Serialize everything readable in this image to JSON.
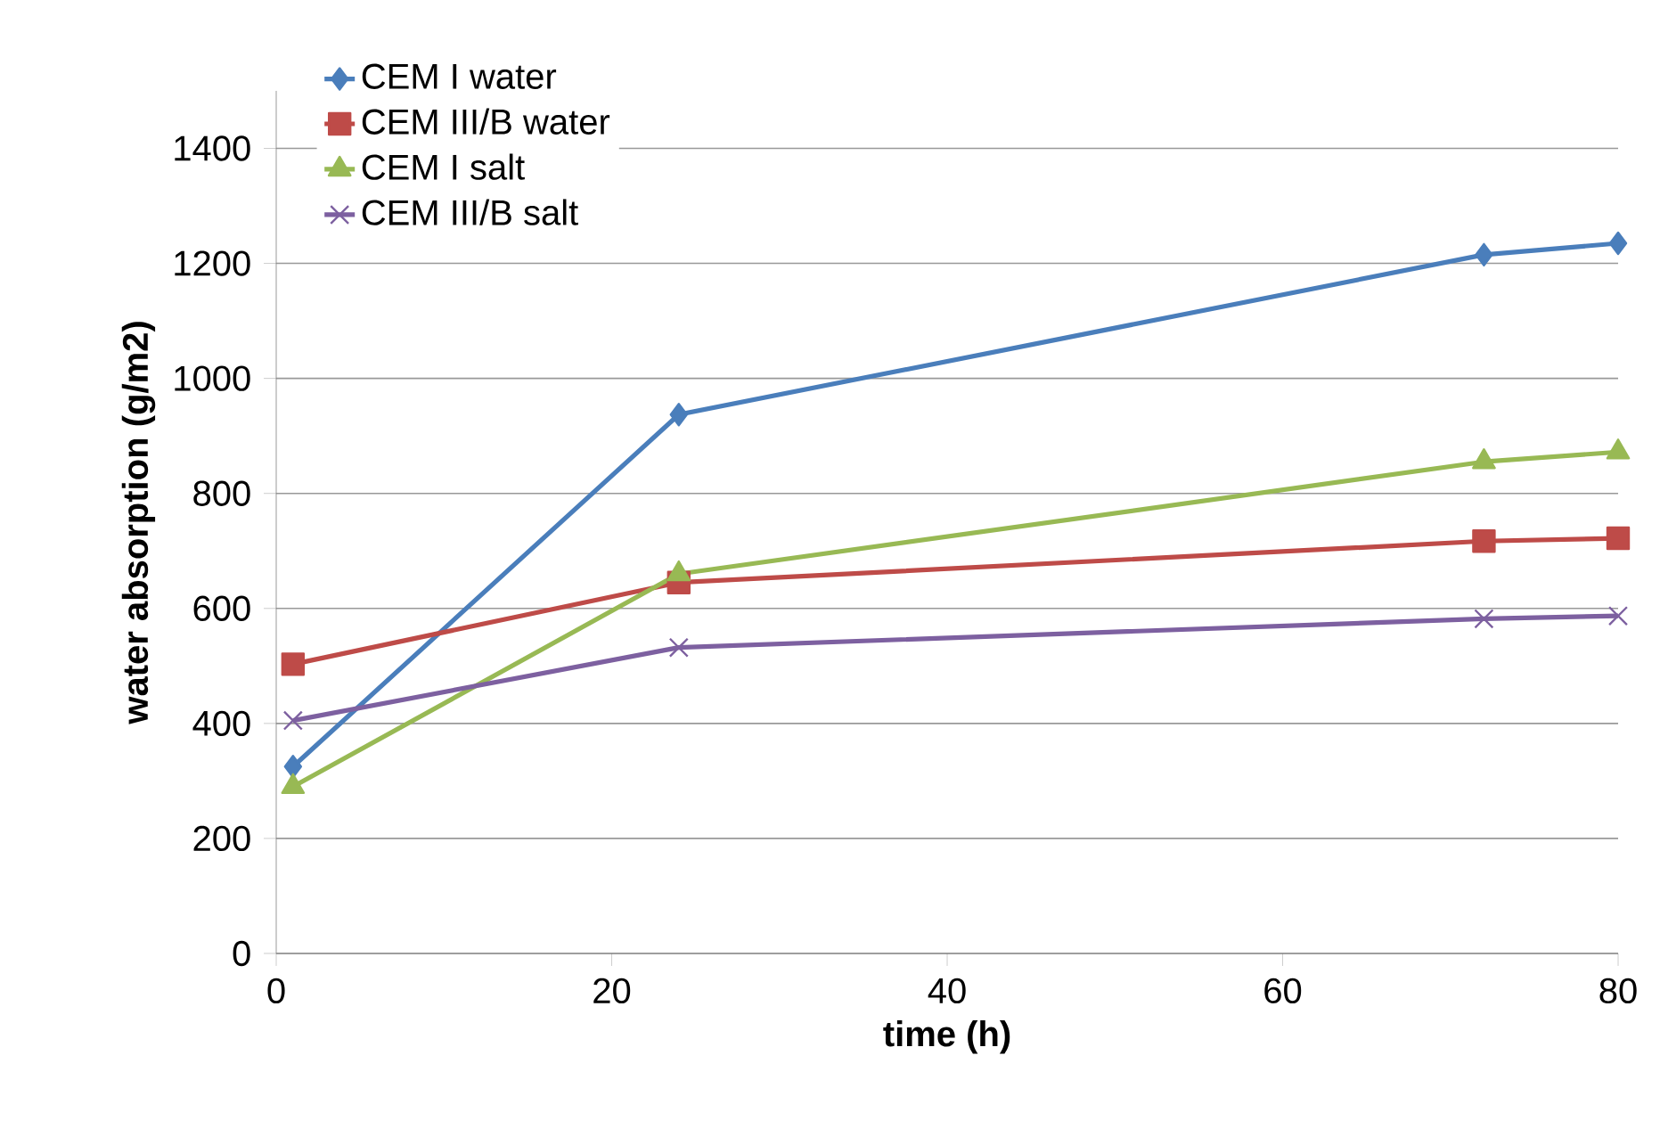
{
  "chart_data": {
    "type": "line",
    "xlabel": "time (h)",
    "ylabel": "water absorption (g/m2)",
    "xlim": [
      0,
      80
    ],
    "xticks": [
      0,
      20,
      40,
      60,
      80
    ],
    "ylim": [
      0,
      1500
    ],
    "yticks": [
      0,
      200,
      400,
      600,
      800,
      1000,
      1200,
      1400
    ],
    "grid": "y",
    "legend": "top left",
    "line_style": "solid",
    "x": [
      1,
      24,
      72,
      80
    ],
    "series": [
      {
        "name": "CEM I water",
        "color": "#4a7ebb",
        "marker": "diamond",
        "values": [
          325,
          937,
          1215,
          1235
        ]
      },
      {
        "name": "CEM III/B water",
        "color": "#be4b48",
        "marker": "square",
        "values": [
          503,
          645,
          717,
          722
        ]
      },
      {
        "name": "CEM I salt",
        "color": "#98b954",
        "marker": "triangle",
        "values": [
          290,
          660,
          855,
          872
        ]
      },
      {
        "name": "CEM III/B salt",
        "color": "#7d60a0",
        "marker": "cross",
        "values": [
          405,
          532,
          582,
          587
        ]
      }
    ]
  }
}
